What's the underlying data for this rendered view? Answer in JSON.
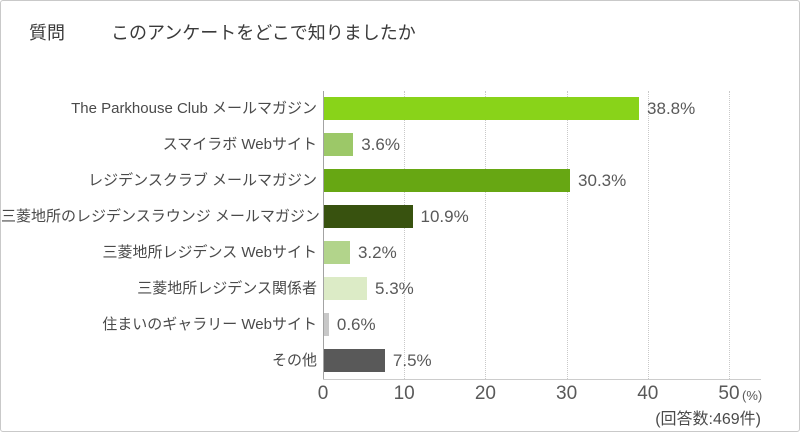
{
  "header": {
    "question_label": "質問",
    "title": "このアンケートをどこで知りましたか"
  },
  "chart_data": {
    "type": "bar",
    "orientation": "horizontal",
    "title": "質問 このアンケートをどこで知りましたか",
    "categories": [
      "The Parkhouse Club メールマガジン",
      "スマイラボ Webサイト",
      "レジデンスクラブ メールマガジン",
      "三菱地所のレジデンスラウンジ メールマガジン",
      "三菱地所レジデンス Webサイト",
      "三菱地所レジデンス関係者",
      "住まいのギャラリー Webサイト",
      "その他"
    ],
    "values": [
      38.8,
      3.6,
      30.3,
      10.9,
      3.2,
      5.3,
      0.6,
      7.5
    ],
    "value_labels": [
      "38.8%",
      "3.6%",
      "30.3%",
      "10.9%",
      "3.2%",
      "5.3%",
      "0.6%",
      "7.5%"
    ],
    "bar_colors": [
      "#89d319",
      "#9cc868",
      "#67a713",
      "#38520f",
      "#b2d48b",
      "#dcebc6",
      "#c8c8c8",
      "#595959"
    ],
    "xlim": [
      0,
      50
    ],
    "x_ticks": [
      0,
      10,
      20,
      30,
      40,
      50
    ],
    "x_unit": "(%)",
    "xlabel": "",
    "ylabel": "",
    "grid": "dotted-vertical",
    "axis_color": "#a3a3a3",
    "grid_color": "#c9c9c9",
    "legend": "none"
  },
  "footer": {
    "respondents": "(回答数:469件)"
  }
}
